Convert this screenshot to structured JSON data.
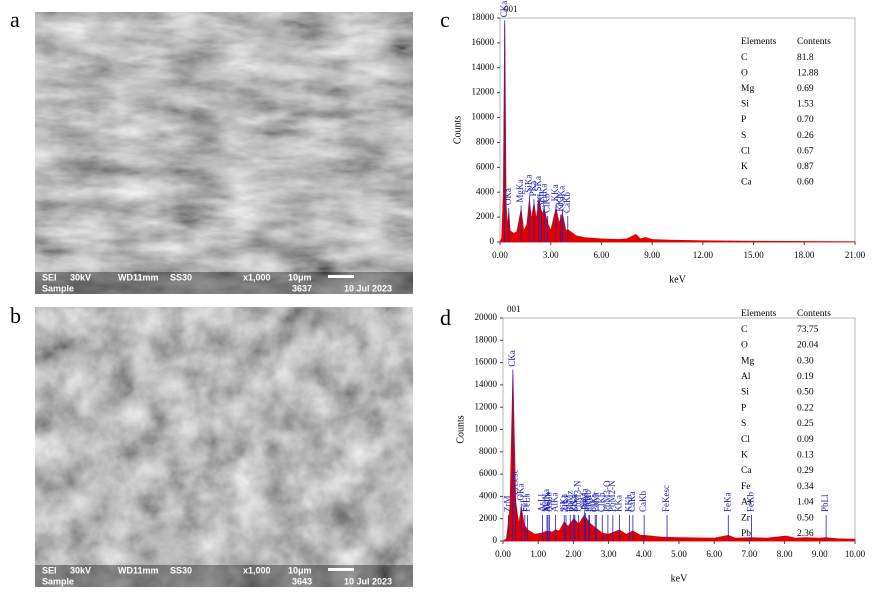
{
  "panel_labels": [
    "a",
    "b",
    "c",
    "d"
  ],
  "sem_images": [
    {
      "info": [
        "SEI",
        "30kV",
        "WD11mm",
        "SS30",
        "x1,000",
        "10μm",
        "3637",
        "10 Jul 2023",
        "Sample"
      ]
    },
    {
      "info": [
        "SEI",
        "30kV",
        "WD11mm",
        "SS30",
        "x1,000",
        "10μm",
        "3643",
        "10 Jul 2023",
        "Sample"
      ]
    }
  ],
  "chart_data": [
    {
      "type": "area",
      "title": "001",
      "x_label": "keV",
      "y_label": "Counts",
      "color": "#e00000",
      "annotation_color": "#2020c0",
      "x": [
        0,
        0.1,
        0.2,
        0.28,
        0.36,
        0.45,
        0.52,
        0.6,
        0.8,
        1.0,
        1.25,
        1.4,
        1.6,
        1.74,
        1.85,
        2.01,
        2.15,
        2.31,
        2.46,
        2.62,
        2.82,
        3.0,
        3.31,
        3.5,
        3.69,
        3.9,
        4.01,
        4.5,
        5,
        6,
        7,
        7.5,
        8.04,
        8.3,
        8.6,
        9,
        10,
        12,
        15,
        18,
        21
      ],
      "values": [
        0,
        300,
        4000,
        17500,
        3000,
        1200,
        2400,
        900,
        700,
        800,
        2600,
        900,
        1400,
        3400,
        1800,
        3100,
        1800,
        3500,
        2200,
        2600,
        1500,
        900,
        2700,
        1500,
        2300,
        900,
        1000,
        500,
        350,
        250,
        200,
        250,
        600,
        250,
        350,
        200,
        150,
        100,
        60,
        40,
        20
      ],
      "xlim": [
        0,
        21
      ],
      "xticks": [
        {
          "value": 0,
          "label": "0.00"
        },
        {
          "value": 3,
          "label": "3.00"
        },
        {
          "value": 6,
          "label": "6.00"
        },
        {
          "value": 9,
          "label": "9.00"
        },
        {
          "value": 12,
          "label": "12.00"
        },
        {
          "value": 15,
          "label": "15.00"
        },
        {
          "value": 18,
          "label": "18.00"
        },
        {
          "value": 21,
          "label": "21.00"
        }
      ],
      "ylim": [
        0,
        18000
      ],
      "yticks": [
        0,
        2000,
        4000,
        6000,
        8000,
        10000,
        12000,
        14000,
        16000,
        18000
      ],
      "annotations": [
        {
          "label": "CKa",
          "x": 0.28
        },
        {
          "label": "OKa",
          "x": 0.52
        },
        {
          "label": "MgKa",
          "x": 1.25
        },
        {
          "label": "SiKa",
          "x": 1.74
        },
        {
          "label": "PKa",
          "x": 2.01
        },
        {
          "label": "SKa",
          "x": 2.31
        },
        {
          "label": "SKb",
          "x": 2.46
        },
        {
          "label": "ClKa",
          "x": 2.62
        },
        {
          "label": "ClKb",
          "x": 2.82
        },
        {
          "label": "KKa",
          "x": 3.31
        },
        {
          "label": "KKb",
          "x": 3.59
        },
        {
          "label": "CaKa",
          "x": 3.69
        },
        {
          "label": "CaKb",
          "x": 4.01
        }
      ],
      "elements_table": {
        "header": [
          "Elements",
          "Contents"
        ],
        "rows": [
          [
            "C",
            "81.8"
          ],
          [
            "O",
            "12.88"
          ],
          [
            "Mg",
            "0.69"
          ],
          [
            "Si",
            "1.53"
          ],
          [
            "P",
            "0.70"
          ],
          [
            "S",
            "0.26"
          ],
          [
            "Cl",
            "0.67"
          ],
          [
            "K",
            "0.87"
          ],
          [
            "Ca",
            "0.60"
          ]
        ]
      }
    },
    {
      "type": "area",
      "title": "001",
      "x_label": "keV",
      "y_label": "Counts",
      "color": "#e00000",
      "annotation_color": "#2020c0",
      "x": [
        0,
        0.1,
        0.15,
        0.2,
        0.28,
        0.36,
        0.45,
        0.52,
        0.6,
        0.7,
        0.9,
        1.1,
        1.25,
        1.4,
        1.49,
        1.6,
        1.74,
        1.85,
        2.01,
        2.15,
        2.31,
        2.46,
        2.62,
        2.82,
        3.0,
        3.31,
        3.5,
        3.69,
        3.9,
        4.01,
        4.5,
        5,
        6,
        6.4,
        6.6,
        7.06,
        7.5,
        8.04,
        8.3,
        8.6,
        9,
        9.18,
        9.5,
        10
      ],
      "values": [
        0,
        200,
        1500,
        3000,
        15000,
        3500,
        1500,
        3000,
        1500,
        1000,
        600,
        700,
        900,
        800,
        1000,
        900,
        1700,
        1300,
        2000,
        1500,
        2300,
        1600,
        1200,
        700,
        600,
        1000,
        600,
        900,
        500,
        500,
        350,
        300,
        250,
        500,
        250,
        300,
        250,
        450,
        250,
        300,
        250,
        300,
        200,
        150
      ],
      "xlim": [
        0,
        10
      ],
      "xticks": [
        {
          "value": 0,
          "label": "0.00"
        },
        {
          "value": 1,
          "label": "1.00"
        },
        {
          "value": 2,
          "label": "2.00"
        },
        {
          "value": 3,
          "label": "3.00"
        },
        {
          "value": 4,
          "label": "4.00"
        },
        {
          "value": 5,
          "label": "5.00"
        },
        {
          "value": 6,
          "label": "6.00"
        },
        {
          "value": 7,
          "label": "7.00"
        },
        {
          "value": 8,
          "label": "8.00"
        },
        {
          "value": 9,
          "label": "9.00"
        },
        {
          "value": 10,
          "label": "10.00"
        }
      ],
      "ylim": [
        0,
        20000
      ],
      "yticks": [
        0,
        2000,
        4000,
        6000,
        8000,
        10000,
        12000,
        14000,
        16000,
        18000,
        20000
      ],
      "annotations": [
        {
          "label": "ZrM",
          "x": 0.15
        },
        {
          "label": "CKa",
          "x": 0.28
        },
        {
          "label": "ZrLesc",
          "x": 0.36
        },
        {
          "label": "OKa",
          "x": 0.52
        },
        {
          "label": "FeLl",
          "x": 0.62
        },
        {
          "label": "FeLa",
          "x": 0.7
        },
        {
          "label": "AsLl",
          "x": 1.12
        },
        {
          "label": "MgKa",
          "x": 1.25
        },
        {
          "label": "AsLa",
          "x": 1.28
        },
        {
          "label": "AsLb",
          "x": 1.32
        },
        {
          "label": "AlKa",
          "x": 1.49
        },
        {
          "label": "SiKa",
          "x": 1.74
        },
        {
          "label": "ZrLl",
          "x": 1.79
        },
        {
          "label": "PbMz",
          "x": 1.91
        },
        {
          "label": "PKa",
          "x": 2.01
        },
        {
          "label": "ZrLa",
          "x": 2.04
        },
        {
          "label": "PbM3-N",
          "x": 2.15
        },
        {
          "label": "SKa",
          "x": 2.31
        },
        {
          "label": "PbMa",
          "x": 2.34
        },
        {
          "label": "PbMb",
          "x": 2.44
        },
        {
          "label": "SKb",
          "x": 2.46
        },
        {
          "label": "ClKa",
          "x": 2.62
        },
        {
          "label": "PbMr",
          "x": 2.65
        },
        {
          "label": "ClKb",
          "x": 2.82
        },
        {
          "label": "PbM3-O",
          "x": 2.98
        },
        {
          "label": "PbM2-N",
          "x": 3.12
        },
        {
          "label": "KKa",
          "x": 3.31
        },
        {
          "label": "KKb",
          "x": 3.59
        },
        {
          "label": "CaKa",
          "x": 3.69
        },
        {
          "label": "CaKb",
          "x": 4.01
        },
        {
          "label": "FeKesc",
          "x": 4.66
        },
        {
          "label": "FeKa",
          "x": 6.4
        },
        {
          "label": "FeKb",
          "x": 7.06
        },
        {
          "label": "PbLl",
          "x": 9.18
        }
      ],
      "elements_table": {
        "header": [
          "Elements",
          "Contents"
        ],
        "rows": [
          [
            "C",
            "73.75"
          ],
          [
            "O",
            "20.04"
          ],
          [
            "Mg",
            "0.30"
          ],
          [
            "Al",
            "0.19"
          ],
          [
            "Si",
            "0.50"
          ],
          [
            "P",
            "0.22"
          ],
          [
            "S",
            "0.25"
          ],
          [
            "Cl",
            "0.09"
          ],
          [
            "K",
            "0.13"
          ],
          [
            "Ca",
            "0.29"
          ],
          [
            "Fe",
            "0.34"
          ],
          [
            "As",
            "1.04"
          ],
          [
            "Zr",
            "0.50"
          ],
          [
            "Pb",
            "2.36"
          ]
        ]
      }
    }
  ]
}
